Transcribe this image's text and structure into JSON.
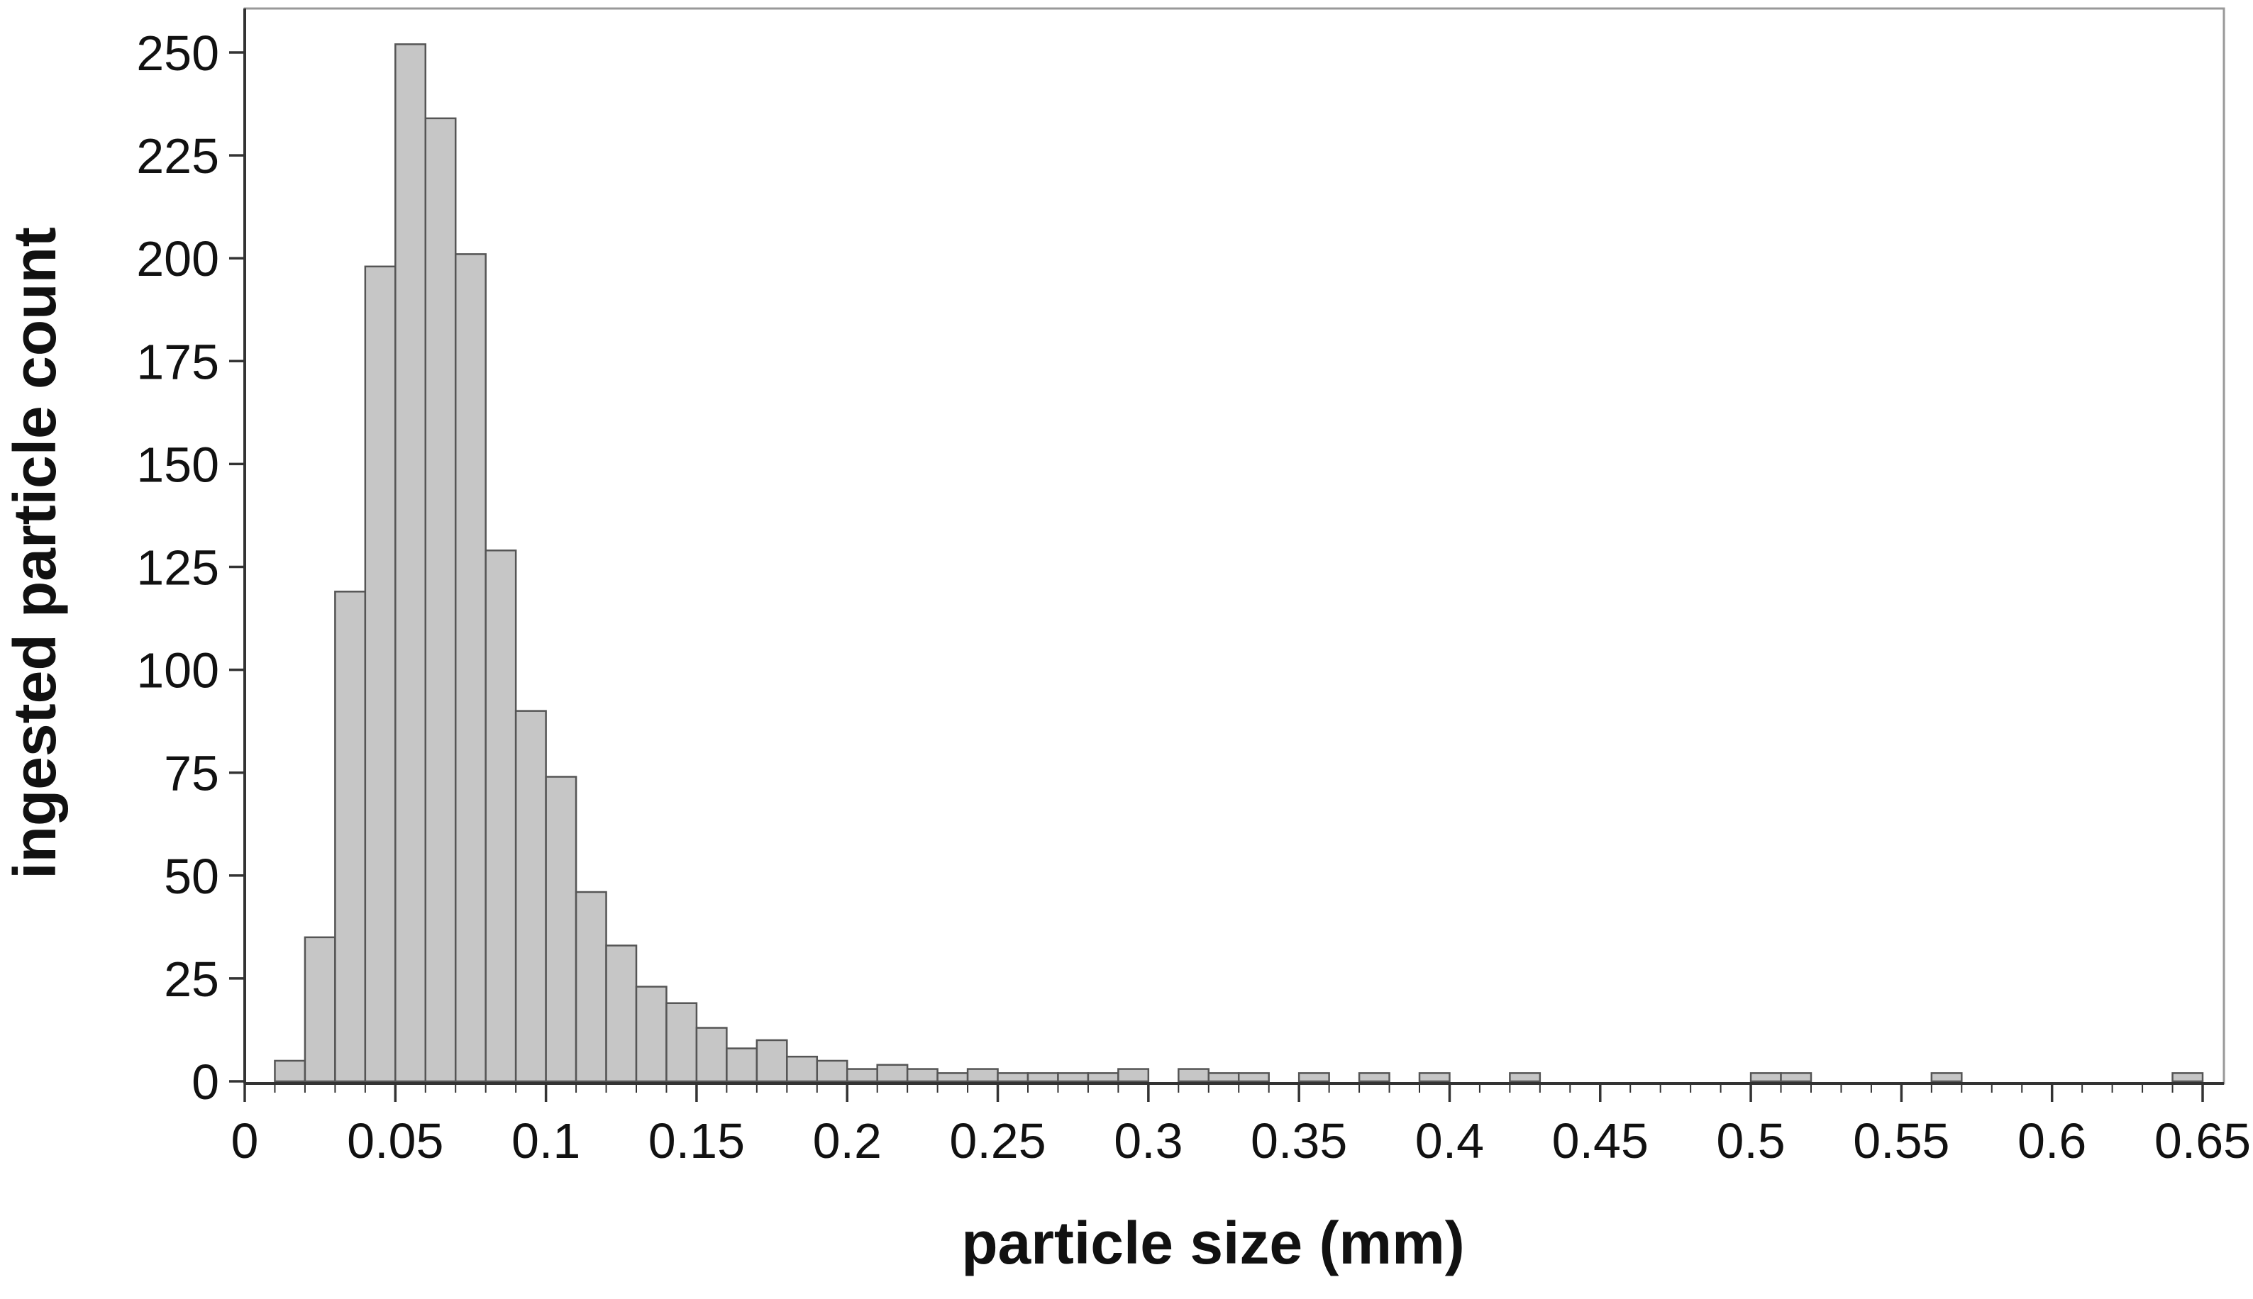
{
  "chart_data": {
    "type": "bar",
    "title": "",
    "xlabel": "particle size (mm)",
    "ylabel": "ingested particle count",
    "xlim": [
      0,
      0.65
    ],
    "ylim": [
      0,
      260
    ],
    "bin_width": 0.01,
    "grid": false,
    "x_ticks": [
      "0",
      "0.05",
      "0.1",
      "0.15",
      "0.2",
      "0.25",
      "0.3",
      "0.35",
      "0.4",
      "0.45",
      "0.5",
      "0.55",
      "0.6",
      "0.65"
    ],
    "y_ticks": [
      "0",
      "25",
      "50",
      "75",
      "100",
      "125",
      "150",
      "175",
      "200",
      "225",
      "250"
    ],
    "bins": [
      {
        "x": 0.01,
        "count": 5
      },
      {
        "x": 0.02,
        "count": 35
      },
      {
        "x": 0.03,
        "count": 119
      },
      {
        "x": 0.04,
        "count": 198
      },
      {
        "x": 0.05,
        "count": 252
      },
      {
        "x": 0.06,
        "count": 234
      },
      {
        "x": 0.07,
        "count": 201
      },
      {
        "x": 0.08,
        "count": 129
      },
      {
        "x": 0.09,
        "count": 90
      },
      {
        "x": 0.1,
        "count": 74
      },
      {
        "x": 0.11,
        "count": 46
      },
      {
        "x": 0.12,
        "count": 33
      },
      {
        "x": 0.13,
        "count": 23
      },
      {
        "x": 0.14,
        "count": 19
      },
      {
        "x": 0.15,
        "count": 13
      },
      {
        "x": 0.16,
        "count": 8
      },
      {
        "x": 0.17,
        "count": 10
      },
      {
        "x": 0.18,
        "count": 6
      },
      {
        "x": 0.19,
        "count": 5
      },
      {
        "x": 0.2,
        "count": 3
      },
      {
        "x": 0.21,
        "count": 4
      },
      {
        "x": 0.22,
        "count": 3
      },
      {
        "x": 0.23,
        "count": 2
      },
      {
        "x": 0.24,
        "count": 3
      },
      {
        "x": 0.25,
        "count": 2
      },
      {
        "x": 0.26,
        "count": 2
      },
      {
        "x": 0.27,
        "count": 2
      },
      {
        "x": 0.28,
        "count": 2
      },
      {
        "x": 0.29,
        "count": 3
      },
      {
        "x": 0.31,
        "count": 3
      },
      {
        "x": 0.32,
        "count": 2
      },
      {
        "x": 0.33,
        "count": 2
      },
      {
        "x": 0.35,
        "count": 2
      },
      {
        "x": 0.37,
        "count": 2
      },
      {
        "x": 0.39,
        "count": 2
      },
      {
        "x": 0.42,
        "count": 2
      },
      {
        "x": 0.5,
        "count": 2
      },
      {
        "x": 0.51,
        "count": 2
      },
      {
        "x": 0.56,
        "count": 2
      },
      {
        "x": 0.64,
        "count": 2
      }
    ],
    "colors": {
      "bar_fill": "#c6c6c6",
      "bar_stroke": "#555555",
      "axis": "#333333",
      "frame": "#999999",
      "text": "#111111"
    }
  }
}
